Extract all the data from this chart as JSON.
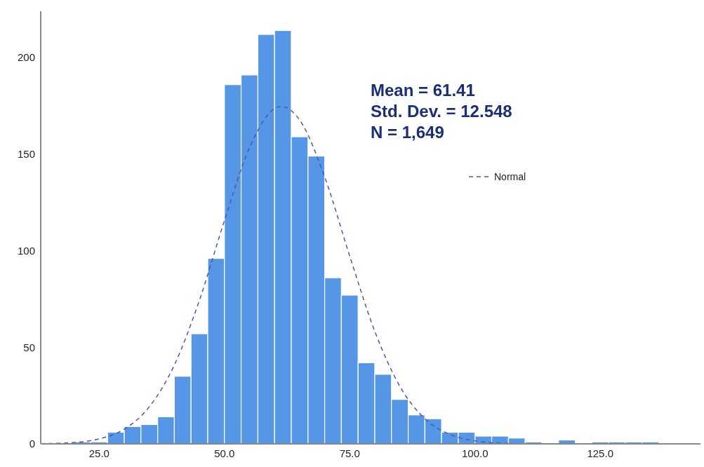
{
  "chart_data": {
    "type": "histogram",
    "bins": [
      13.33,
      16.67,
      20,
      23.33,
      26.67,
      30,
      33.33,
      36.67,
      40,
      43.33,
      46.67,
      50,
      53.33,
      56.67,
      60,
      63.33,
      66.67,
      70,
      73.33,
      76.67,
      80,
      83.33,
      86.67,
      90,
      93.33,
      96.67,
      100,
      103.33,
      106.67,
      110,
      113.33,
      116.67,
      120,
      123.33,
      126.67,
      130,
      133.33,
      136.67,
      140,
      143.33
    ],
    "series": [
      {
        "color": "#5596e6",
        "values": [
          0,
          0,
          1,
          1,
          6,
          9,
          10,
          14,
          35,
          57,
          96,
          186,
          191,
          212,
          214,
          159,
          149,
          86,
          77,
          42,
          36,
          23,
          15,
          13,
          6,
          6,
          4,
          4,
          3,
          1,
          0,
          2,
          0,
          1,
          1,
          1,
          1,
          0,
          0
        ]
      },
      {
        "type": "line",
        "name": "Normal",
        "color": "#4a5aa8",
        "line_style": "dashed",
        "x": [
          13.33,
          20,
          25,
          30,
          35,
          40,
          45,
          50,
          55,
          60,
          61.41,
          65,
          70,
          75,
          80,
          85,
          90,
          95,
          100,
          105,
          110
        ],
        "values": [
          0.1,
          0.7,
          2.6,
          7.6,
          19.2,
          40.8,
          74.3,
          115.6,
          153.3,
          173.6,
          174.7,
          167.7,
          138.2,
          97.2,
          58.3,
          29.8,
          13,
          4.9,
          1.5,
          0.4,
          0.1
        ]
      }
    ],
    "xlim": [
      13.33,
      145
    ],
    "xticks": [
      {
        "value": 25,
        "label": "25.0"
      },
      {
        "value": 50,
        "label": "50.0"
      },
      {
        "value": 75,
        "label": "75.0"
      },
      {
        "value": 100,
        "label": "100.0"
      },
      {
        "value": 125,
        "label": "125.0"
      }
    ],
    "ylim": [
      0,
      224
    ],
    "yticks": [
      0,
      50,
      100,
      150,
      200
    ],
    "grid": false,
    "legend": "top right",
    "annotations": [
      "Mean = 61.41",
      "Std. Dev. = 12.548",
      "N = 1,649"
    ]
  }
}
